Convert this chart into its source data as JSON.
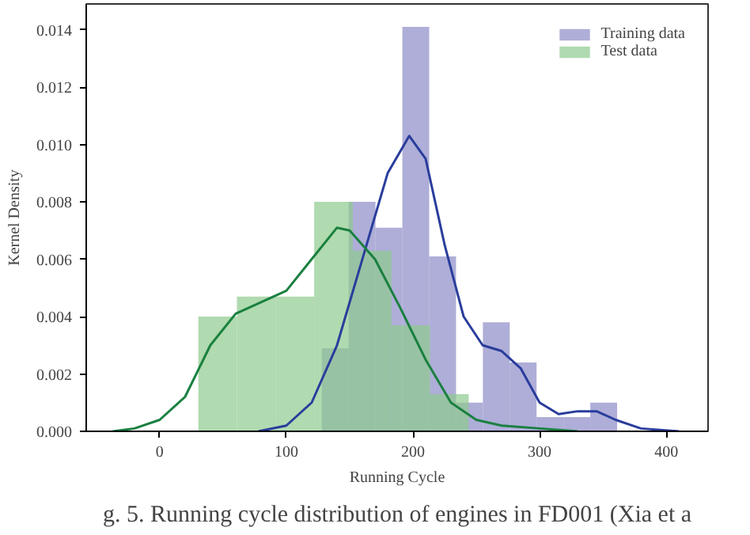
{
  "chart_data": {
    "type": "histogram",
    "xlabel": "Running Cycle",
    "ylabel": "Kernel Density",
    "annotations": [
      "g. 5. Running cycle distribution of engines in FD001 (Xia et a"
    ],
    "xlim": [
      -58,
      433
    ],
    "ylim": [
      0,
      0.0149
    ],
    "xticks": [
      0,
      100,
      200,
      300,
      400
    ],
    "yticks": [
      {
        "value": 0,
        "label": "0.000"
      },
      {
        "value": 0.002,
        "label": "0.002"
      },
      {
        "value": 0.004,
        "label": "0.004"
      },
      {
        "value": 0.006,
        "label": "0.006"
      },
      {
        "value": 0.008,
        "label": "0.008"
      },
      {
        "value": 0.01,
        "label": "0.010"
      },
      {
        "value": 0.012,
        "label": "0.012"
      },
      {
        "value": 0.014,
        "label": "0.014"
      }
    ],
    "grid": false,
    "legend": "top right",
    "series": [
      {
        "name": "Training data",
        "color": "#8c8cc8",
        "bins": [
          128,
          149.2,
          170.4,
          191.6,
          212.8,
          234,
          255.2,
          276.4,
          297.6,
          318.8,
          340,
          361.2
        ],
        "values": [
          0.0029,
          0.008,
          0.0071,
          0.0141,
          0.0061,
          0.001,
          0.0038,
          0.0024,
          0.0005,
          0.0005,
          0.001
        ]
      },
      {
        "name": "Test data",
        "color": "#8fcb8f",
        "bins": [
          30.5,
          61,
          91.5,
          122,
          152.5,
          183,
          213.5,
          244
        ],
        "values": [
          0.004,
          0.0047,
          0.0047,
          0.008,
          0.0063,
          0.0037,
          0.0013
        ]
      },
      {
        "type": "line",
        "color": "#2a3d9c",
        "x": [
          78,
          100,
          120,
          140,
          160,
          180,
          197,
          210,
          225,
          240,
          255,
          270,
          285,
          300,
          315,
          330,
          345,
          360,
          380,
          410
        ],
        "values": [
          0,
          0.0002,
          0.001,
          0.003,
          0.006,
          0.009,
          0.0103,
          0.0095,
          0.0065,
          0.004,
          0.003,
          0.0028,
          0.0022,
          0.001,
          0.0006,
          0.0007,
          0.0007,
          0.0004,
          0.0001,
          0
        ]
      },
      {
        "type": "line",
        "color": "#1a8040",
        "x": [
          -37,
          -20,
          0,
          20,
          40,
          60,
          80,
          100,
          120,
          140,
          150,
          170,
          190,
          210,
          230,
          250,
          270,
          300,
          330
        ],
        "values": [
          0,
          0.0001,
          0.0004,
          0.0012,
          0.003,
          0.0041,
          0.0045,
          0.0049,
          0.006,
          0.0071,
          0.007,
          0.006,
          0.0043,
          0.0025,
          0.001,
          0.0004,
          0.0002,
          0.0001,
          0
        ]
      }
    ]
  }
}
